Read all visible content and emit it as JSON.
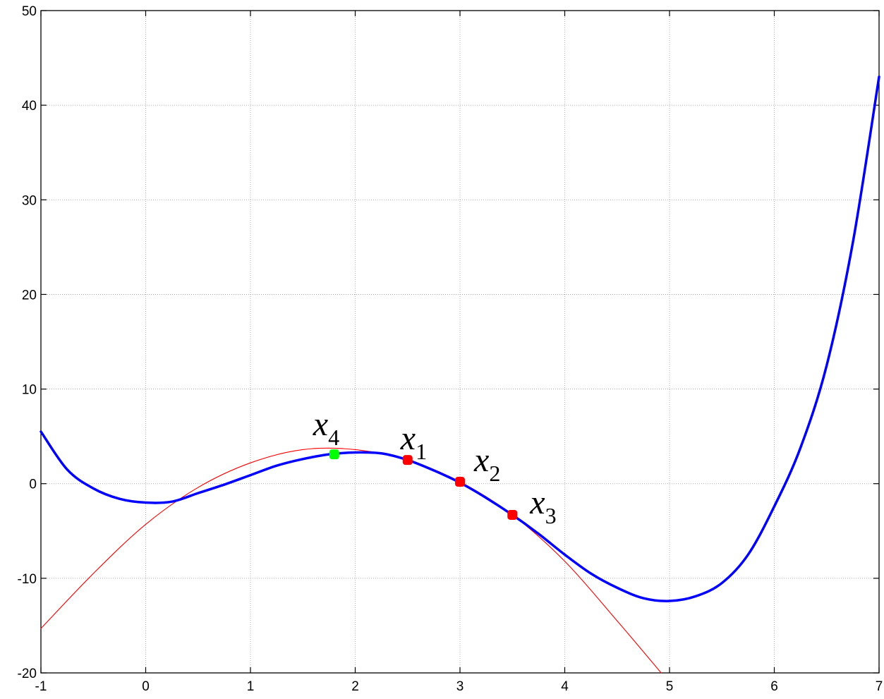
{
  "chart_data": {
    "type": "line",
    "title": "",
    "xlabel": "",
    "ylabel": "",
    "xlim": [
      -1,
      7
    ],
    "ylim": [
      -20,
      50
    ],
    "grid": true,
    "x_ticks": [
      -1,
      0,
      1,
      2,
      3,
      4,
      5,
      6,
      7
    ],
    "x_tick_labels": [
      "-1",
      "0",
      "1",
      "2",
      "3",
      "4",
      "5",
      "6",
      "7"
    ],
    "y_ticks": [
      -20,
      -10,
      0,
      10,
      20,
      30,
      40,
      50
    ],
    "y_tick_labels": [
      "-20",
      "-10",
      "0",
      "10",
      "20",
      "30",
      "40",
      "50"
    ],
    "series": [
      {
        "color": "#0000ff",
        "style": "thick",
        "x": [
          -1,
          -0.75,
          -0.5,
          -0.25,
          0,
          0.25,
          0.5,
          0.75,
          1,
          1.25,
          1.5,
          1.75,
          2,
          2.25,
          2.5,
          2.75,
          3,
          3.25,
          3.5,
          3.75,
          4,
          4.25,
          4.5,
          4.75,
          5,
          5.25,
          5.5,
          5.75,
          6,
          6.25,
          6.5,
          6.75,
          7
        ],
        "y": [
          5.5,
          1.5,
          -0.5,
          -1.6,
          -2.0,
          -1.9,
          -1.0,
          -0.1,
          0.9,
          1.9,
          2.6,
          3.1,
          3.3,
          3.2,
          2.5,
          1.4,
          0.1,
          -1.5,
          -3.3,
          -5.3,
          -7.5,
          -9.5,
          -11.0,
          -12.1,
          -12.4,
          -11.9,
          -10.5,
          -7.5,
          -2.4,
          3.8,
          12.5,
          25.5,
          43.0
        ]
      },
      {
        "color": "#ff0000",
        "style": "thin",
        "x": [
          -1,
          -0.5,
          0,
          0.5,
          1,
          1.5,
          2,
          2.5,
          3,
          3.5,
          4,
          4.5,
          4.92
        ],
        "y": [
          -15.3,
          -9.5,
          -4.3,
          -0.4,
          2.2,
          3.6,
          3.6,
          2.5,
          0.2,
          -3.3,
          -8.2,
          -14.5,
          -20.0
        ]
      }
    ],
    "points": [
      {
        "label": "x",
        "subscript": "4",
        "x": 1.8,
        "y": 3.1,
        "color": "#00ff00"
      },
      {
        "label": "x",
        "subscript": "1",
        "x": 2.5,
        "y": 2.5,
        "color": "#ff0000"
      },
      {
        "label": "x",
        "subscript": "2",
        "x": 3.0,
        "y": 0.2,
        "color": "#ff0000"
      },
      {
        "label": "x",
        "subscript": "3",
        "x": 3.5,
        "y": -3.3,
        "color": "#ff0000"
      }
    ]
  }
}
